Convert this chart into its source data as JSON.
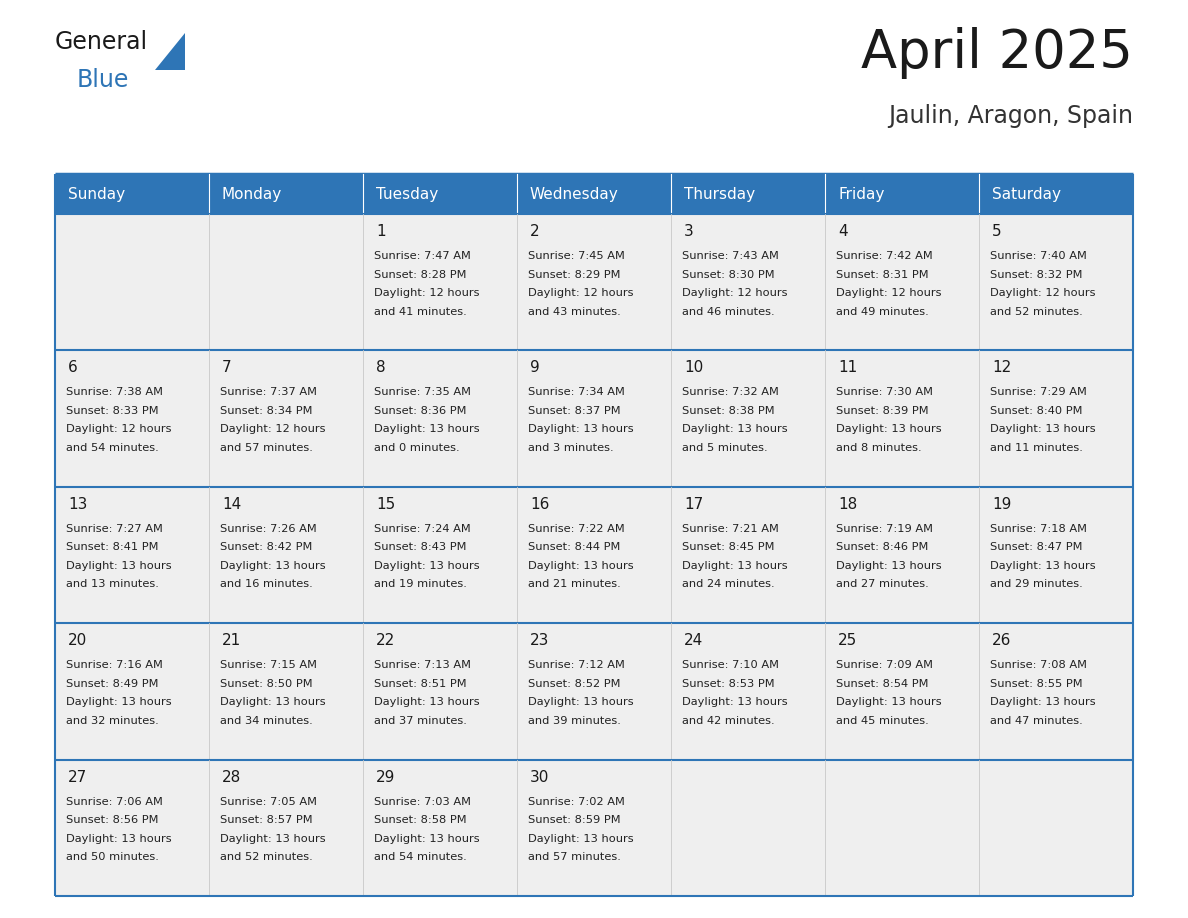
{
  "title": "April 2025",
  "subtitle": "Jaulin, Aragon, Spain",
  "header_color": "#2E75B6",
  "header_text_color": "#FFFFFF",
  "cell_bg": "#EFEFEF",
  "cell_bg_empty": "#EFEFEF",
  "day_headers": [
    "Sunday",
    "Monday",
    "Tuesday",
    "Wednesday",
    "Thursday",
    "Friday",
    "Saturday"
  ],
  "title_color": "#1a1a1a",
  "subtitle_color": "#333333",
  "divider_color": "#2E75B6",
  "grid_line_color": "#BBBBBB",
  "weeks": [
    [
      {
        "day": "",
        "info": ""
      },
      {
        "day": "",
        "info": ""
      },
      {
        "day": "1",
        "info": "Sunrise: 7:47 AM\nSunset: 8:28 PM\nDaylight: 12 hours\nand 41 minutes."
      },
      {
        "day": "2",
        "info": "Sunrise: 7:45 AM\nSunset: 8:29 PM\nDaylight: 12 hours\nand 43 minutes."
      },
      {
        "day": "3",
        "info": "Sunrise: 7:43 AM\nSunset: 8:30 PM\nDaylight: 12 hours\nand 46 minutes."
      },
      {
        "day": "4",
        "info": "Sunrise: 7:42 AM\nSunset: 8:31 PM\nDaylight: 12 hours\nand 49 minutes."
      },
      {
        "day": "5",
        "info": "Sunrise: 7:40 AM\nSunset: 8:32 PM\nDaylight: 12 hours\nand 52 minutes."
      }
    ],
    [
      {
        "day": "6",
        "info": "Sunrise: 7:38 AM\nSunset: 8:33 PM\nDaylight: 12 hours\nand 54 minutes."
      },
      {
        "day": "7",
        "info": "Sunrise: 7:37 AM\nSunset: 8:34 PM\nDaylight: 12 hours\nand 57 minutes."
      },
      {
        "day": "8",
        "info": "Sunrise: 7:35 AM\nSunset: 8:36 PM\nDaylight: 13 hours\nand 0 minutes."
      },
      {
        "day": "9",
        "info": "Sunrise: 7:34 AM\nSunset: 8:37 PM\nDaylight: 13 hours\nand 3 minutes."
      },
      {
        "day": "10",
        "info": "Sunrise: 7:32 AM\nSunset: 8:38 PM\nDaylight: 13 hours\nand 5 minutes."
      },
      {
        "day": "11",
        "info": "Sunrise: 7:30 AM\nSunset: 8:39 PM\nDaylight: 13 hours\nand 8 minutes."
      },
      {
        "day": "12",
        "info": "Sunrise: 7:29 AM\nSunset: 8:40 PM\nDaylight: 13 hours\nand 11 minutes."
      }
    ],
    [
      {
        "day": "13",
        "info": "Sunrise: 7:27 AM\nSunset: 8:41 PM\nDaylight: 13 hours\nand 13 minutes."
      },
      {
        "day": "14",
        "info": "Sunrise: 7:26 AM\nSunset: 8:42 PM\nDaylight: 13 hours\nand 16 minutes."
      },
      {
        "day": "15",
        "info": "Sunrise: 7:24 AM\nSunset: 8:43 PM\nDaylight: 13 hours\nand 19 minutes."
      },
      {
        "day": "16",
        "info": "Sunrise: 7:22 AM\nSunset: 8:44 PM\nDaylight: 13 hours\nand 21 minutes."
      },
      {
        "day": "17",
        "info": "Sunrise: 7:21 AM\nSunset: 8:45 PM\nDaylight: 13 hours\nand 24 minutes."
      },
      {
        "day": "18",
        "info": "Sunrise: 7:19 AM\nSunset: 8:46 PM\nDaylight: 13 hours\nand 27 minutes."
      },
      {
        "day": "19",
        "info": "Sunrise: 7:18 AM\nSunset: 8:47 PM\nDaylight: 13 hours\nand 29 minutes."
      }
    ],
    [
      {
        "day": "20",
        "info": "Sunrise: 7:16 AM\nSunset: 8:49 PM\nDaylight: 13 hours\nand 32 minutes."
      },
      {
        "day": "21",
        "info": "Sunrise: 7:15 AM\nSunset: 8:50 PM\nDaylight: 13 hours\nand 34 minutes."
      },
      {
        "day": "22",
        "info": "Sunrise: 7:13 AM\nSunset: 8:51 PM\nDaylight: 13 hours\nand 37 minutes."
      },
      {
        "day": "23",
        "info": "Sunrise: 7:12 AM\nSunset: 8:52 PM\nDaylight: 13 hours\nand 39 minutes."
      },
      {
        "day": "24",
        "info": "Sunrise: 7:10 AM\nSunset: 8:53 PM\nDaylight: 13 hours\nand 42 minutes."
      },
      {
        "day": "25",
        "info": "Sunrise: 7:09 AM\nSunset: 8:54 PM\nDaylight: 13 hours\nand 45 minutes."
      },
      {
        "day": "26",
        "info": "Sunrise: 7:08 AM\nSunset: 8:55 PM\nDaylight: 13 hours\nand 47 minutes."
      }
    ],
    [
      {
        "day": "27",
        "info": "Sunrise: 7:06 AM\nSunset: 8:56 PM\nDaylight: 13 hours\nand 50 minutes."
      },
      {
        "day": "28",
        "info": "Sunrise: 7:05 AM\nSunset: 8:57 PM\nDaylight: 13 hours\nand 52 minutes."
      },
      {
        "day": "29",
        "info": "Sunrise: 7:03 AM\nSunset: 8:58 PM\nDaylight: 13 hours\nand 54 minutes."
      },
      {
        "day": "30",
        "info": "Sunrise: 7:02 AM\nSunset: 8:59 PM\nDaylight: 13 hours\nand 57 minutes."
      },
      {
        "day": "",
        "info": ""
      },
      {
        "day": "",
        "info": ""
      },
      {
        "day": "",
        "info": ""
      }
    ]
  ]
}
